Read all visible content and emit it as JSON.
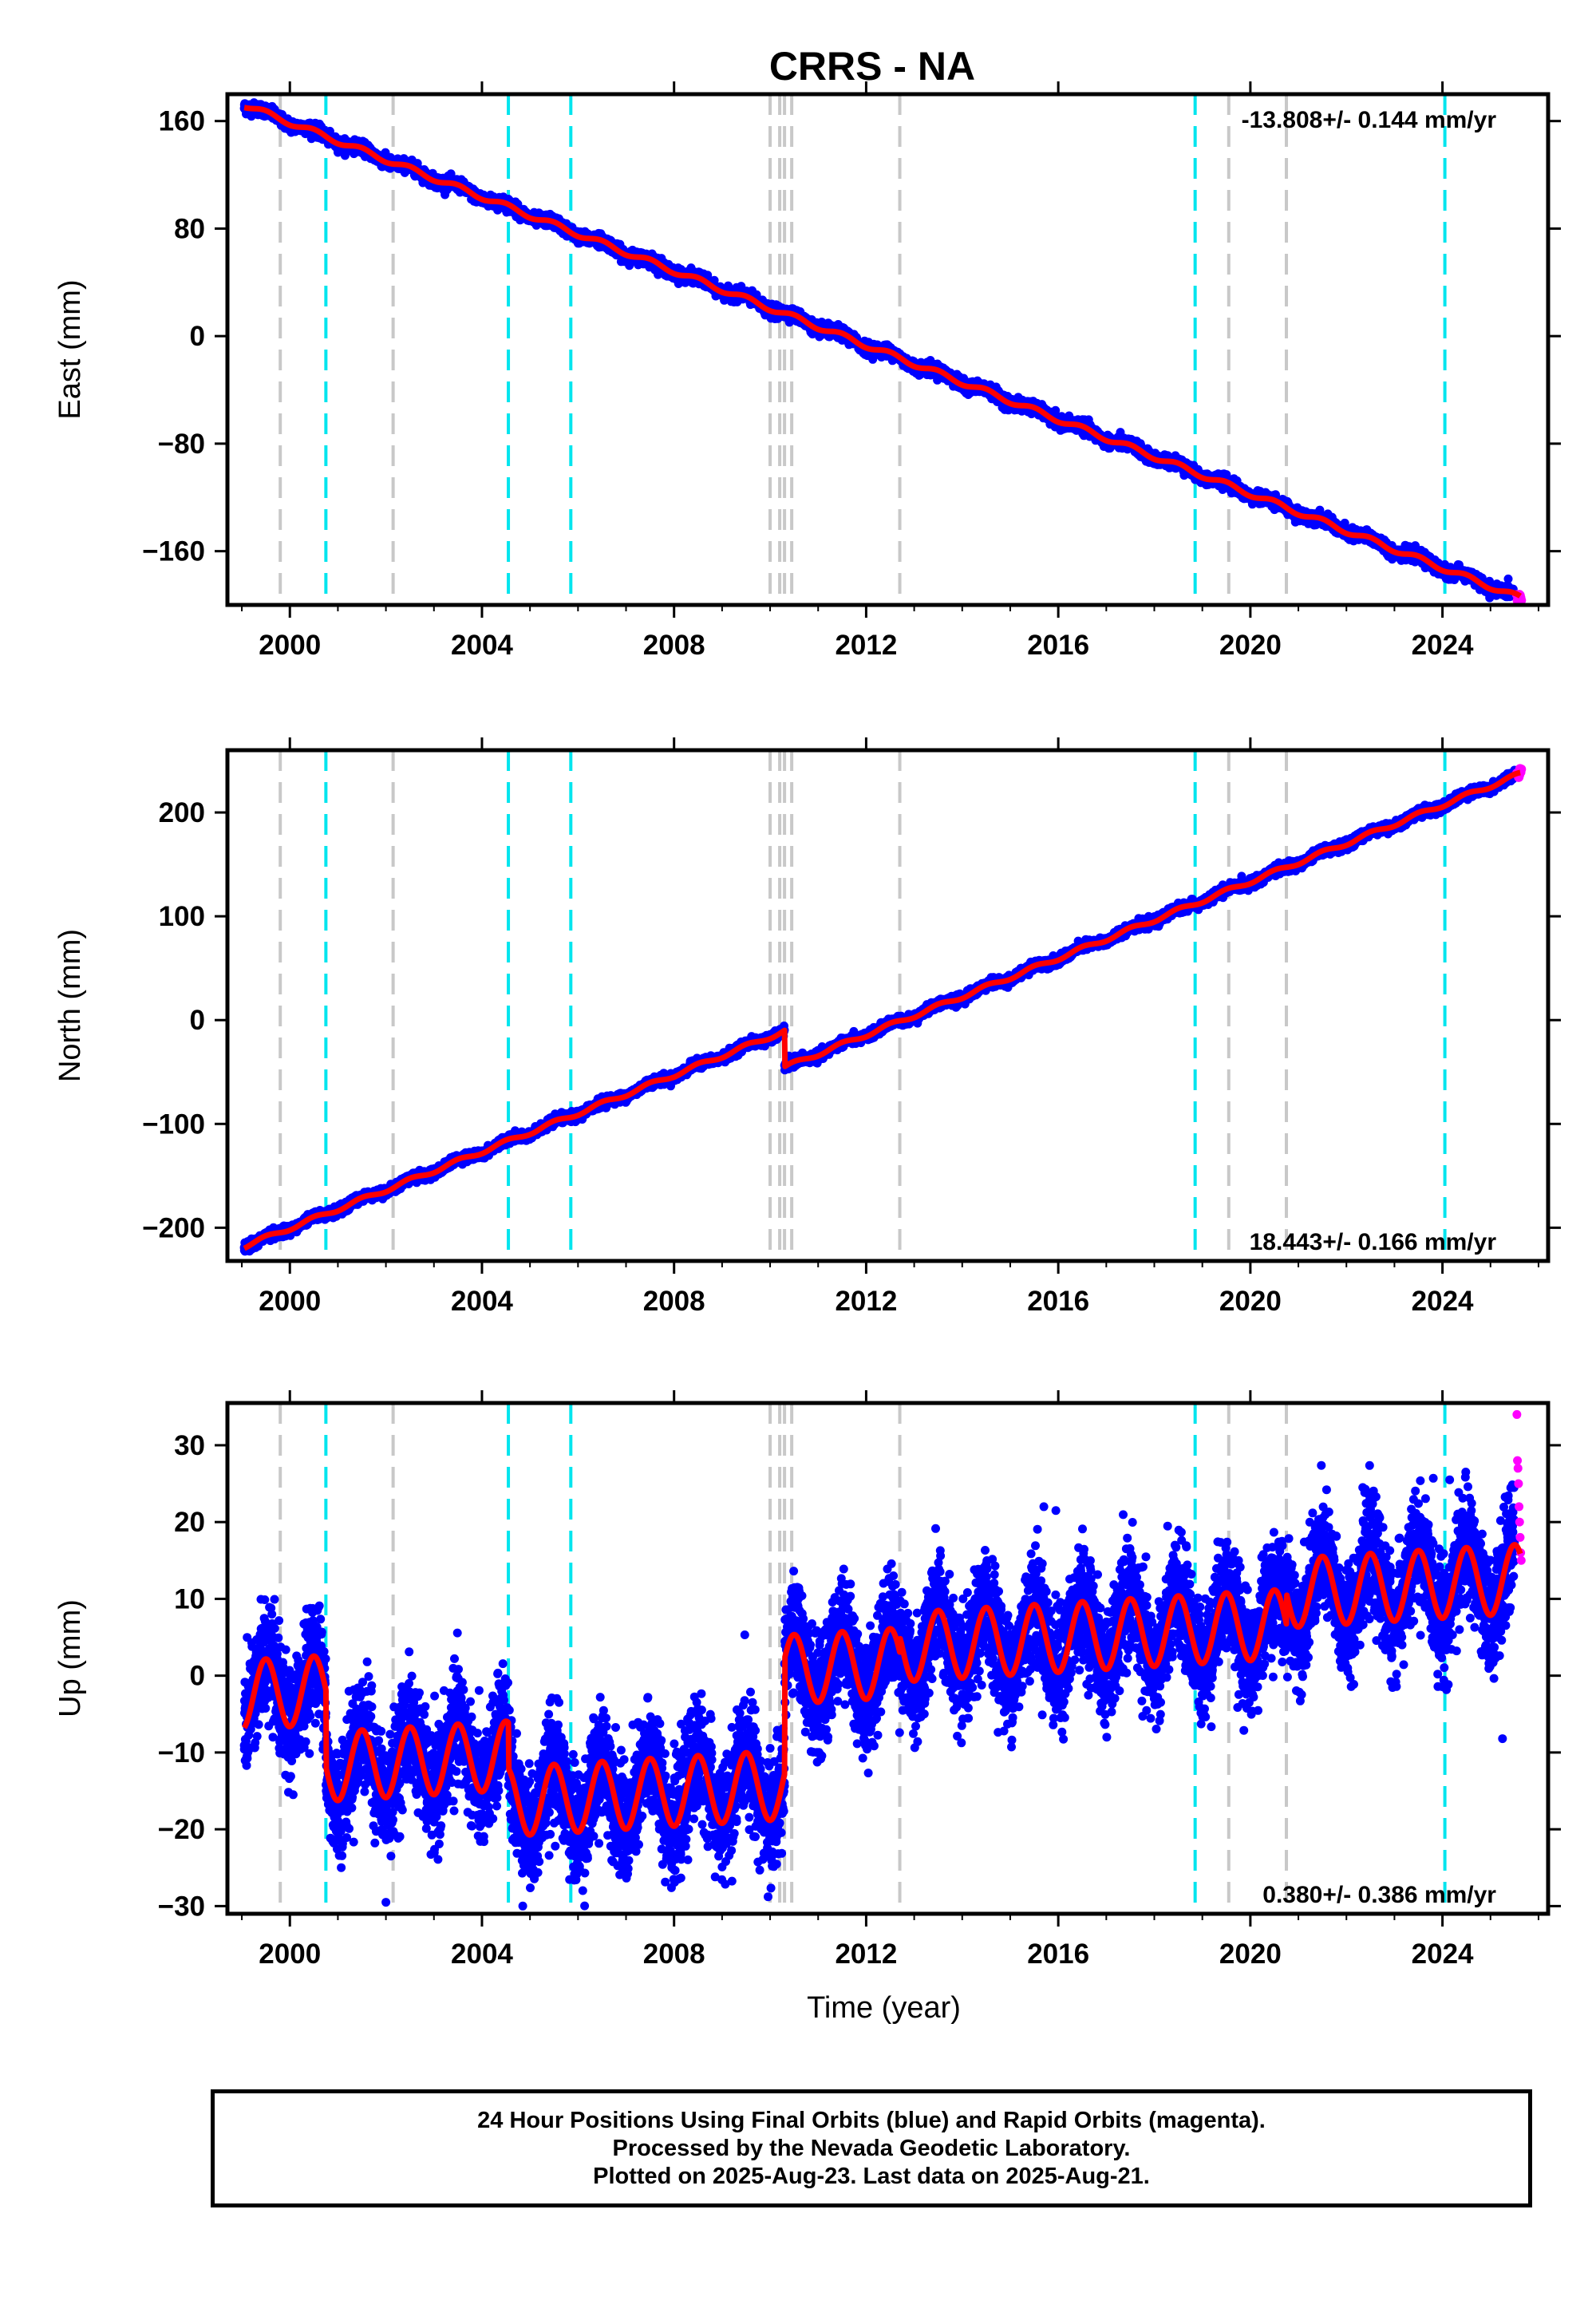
{
  "title": "CRRS - NA",
  "colors": {
    "final_points": "#0000ff",
    "rapid_points": "#ff00ff",
    "model_line": "#ff0000",
    "antenna_change_lines": "#00e5ee",
    "other_event_lines": "#c8c8c8",
    "frame": "#000000"
  },
  "chart_data": [
    {
      "type": "scatter",
      "name": "east",
      "ylabel": "East (mm)",
      "xlabel": "",
      "xlim": [
        1998.7,
        2026.2
      ],
      "ylim": [
        -200,
        180
      ],
      "xticks": [
        2000,
        2004,
        2008,
        2012,
        2016,
        2020,
        2024
      ],
      "yticks": [
        160,
        80,
        0,
        -80,
        -160
      ],
      "rate_text": "-13.808+/- 0.144 mm/yr",
      "rate_position": "top-right",
      "model": {
        "t0": 1999.05,
        "a0": 172,
        "rate": -13.808,
        "amp": 2,
        "offsets": []
      },
      "final_points": {
        "start": 1999.05,
        "end": 2025.5,
        "scatter_sd": 2.2
      },
      "rapid_points": {
        "start": 2025.55,
        "end": 2025.64
      }
    },
    {
      "type": "scatter",
      "name": "north",
      "ylabel": "North (mm)",
      "xlabel": "",
      "xlim": [
        1998.7,
        2026.2
      ],
      "ylim": [
        -232,
        260
      ],
      "xticks": [
        2000,
        2004,
        2008,
        2012,
        2016,
        2020,
        2024
      ],
      "yticks": [
        200,
        100,
        0,
        -100,
        -200
      ],
      "rate_text": "18.443+/- 0.166 mm/yr",
      "rate_position": "bottom-right",
      "model": {
        "t0": 1999.05,
        "a0": -218,
        "rate": 18.443,
        "amp": 2,
        "offsets": [
          {
            "t": 2010.3,
            "dy": -35
          }
        ]
      },
      "final_points": {
        "start": 1999.05,
        "end": 2025.5,
        "scatter_sd": 2.2
      },
      "rapid_points": {
        "start": 2025.55,
        "end": 2025.64
      }
    },
    {
      "type": "scatter",
      "name": "up",
      "ylabel": "Up (mm)",
      "xlabel": "Time (year)",
      "xlim": [
        1998.7,
        2026.2
      ],
      "ylim": [
        -31,
        35.5
      ],
      "xticks": [
        2000,
        2004,
        2008,
        2012,
        2016,
        2020,
        2024
      ],
      "yticks": [
        30,
        20,
        10,
        0,
        -10,
        -20,
        -30
      ],
      "rate_text": "0.380+/- 0.386 mm/yr",
      "rate_position": "bottom-right",
      "model": {
        "t0": 1999.05,
        "a0": -2.5,
        "rate": 0.38,
        "amp": 4.5,
        "offsets": [
          {
            "t": 2000.75,
            "dy": -10
          },
          {
            "t": 2004.55,
            "dy": -6
          },
          {
            "t": 2010.3,
            "dy": 15
          },
          {
            "t": 2012.7,
            "dy": 2
          },
          {
            "t": 2020.75,
            "dy": 4
          }
        ]
      },
      "final_points": {
        "start": 1999.05,
        "end": 2025.5,
        "scatter_sd": 3.6
      },
      "rapid_points": {
        "start": 2025.55,
        "end": 2025.64,
        "values": [
          34,
          28,
          27,
          25,
          22,
          20,
          18,
          16,
          15
        ]
      },
      "outliers": [
        {
          "t": 2002.0,
          "y": -29.5
        },
        {
          "t": 2024.15,
          "y": 25.5
        },
        {
          "t": 2025.25,
          "y": -8.2
        },
        {
          "t": 2015.7,
          "y": 22
        },
        {
          "t": 2015.95,
          "y": 21.5
        }
      ]
    }
  ],
  "event_lines": {
    "antenna": [
      2000.75,
      2004.55,
      2005.85,
      2018.85,
      2024.05
    ],
    "other": [
      1999.8,
      2002.15,
      2010.0,
      2010.2,
      2010.3,
      2010.45,
      2012.7,
      2019.55,
      2020.75
    ]
  },
  "caption": {
    "line1": "24 Hour Positions Using Final Orbits (blue) and Rapid Orbits (magenta).",
    "line2": "Processed by the Nevada Geodetic Laboratory.",
    "line3": "Plotted on 2025-Aug-23. Last data on 2025-Aug-21."
  }
}
